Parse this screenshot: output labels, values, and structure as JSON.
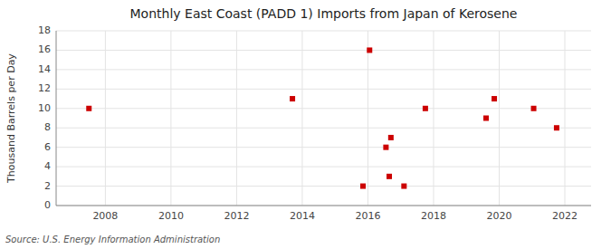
{
  "chart_data": {
    "type": "scatter",
    "title": "Monthly East Coast (PADD 1) Imports from Japan of Kerosene",
    "ylabel": "Thousand Barrels per Day",
    "source": "Source: U.S. Energy Information Administration",
    "x": [
      2007.5,
      2013.7,
      2015.85,
      2016.05,
      2016.55,
      2016.7,
      2016.65,
      2017.1,
      2017.75,
      2019.6,
      2019.85,
      2021.05,
      2021.75
    ],
    "values": [
      10,
      11,
      2,
      16,
      6,
      7,
      3,
      2,
      10,
      9,
      11,
      10,
      8
    ],
    "xlim": [
      2006.5,
      2022.8
    ],
    "ylim": [
      0,
      18
    ],
    "xticks": [
      2008,
      2010,
      2012,
      2014,
      2016,
      2018,
      2020,
      2022
    ],
    "yticks": [
      0,
      2,
      4,
      6,
      8,
      10,
      12,
      14,
      16,
      18
    ],
    "color": "#cc0000",
    "marker": "square",
    "grid": true
  }
}
